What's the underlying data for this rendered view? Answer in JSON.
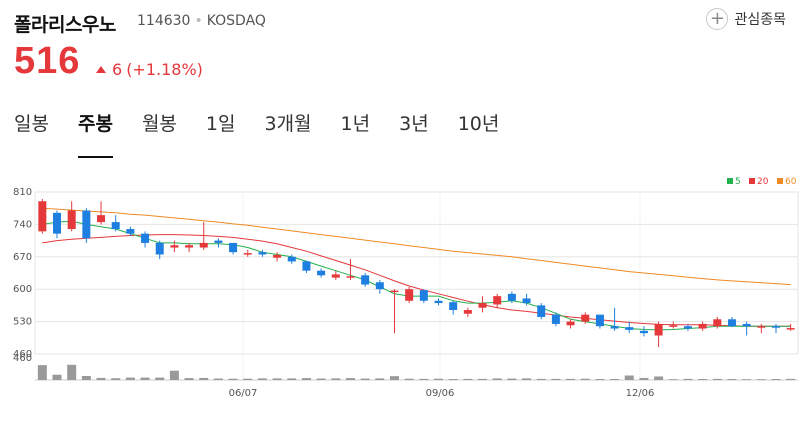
{
  "header": {
    "name": "폴라리스우노",
    "code": "114630",
    "market": "KOSDAQ",
    "favorite_label": "관심종목",
    "favorite_icon": "plus-icon"
  },
  "price": {
    "current": "516",
    "change": "6",
    "change_pct": "(+1.18%)",
    "direction_icon": "up-triangle-icon",
    "color": "#e5383b"
  },
  "tabs": [
    {
      "label": "일봉",
      "active": false
    },
    {
      "label": "주봉",
      "active": true
    },
    {
      "label": "월봉",
      "active": false
    },
    {
      "label": "1일",
      "active": false
    },
    {
      "label": "3개월",
      "active": false
    },
    {
      "label": "1년",
      "active": false
    },
    {
      "label": "3년",
      "active": false
    },
    {
      "label": "10년",
      "active": false
    }
  ],
  "chart_data": {
    "type": "candlestick",
    "y_ticks": [
      810,
      740,
      670,
      600,
      530,
      460
    ],
    "ylim": [
      460,
      810
    ],
    "volume_label": "460",
    "x_ticks": [
      "06/07",
      "09/06",
      "12/06"
    ],
    "legend": [
      {
        "name": "5",
        "color": "#22b14c"
      },
      {
        "name": "20",
        "color": "#e5383b"
      },
      {
        "name": "60",
        "color": "#f08a24"
      }
    ],
    "colors": {
      "up": "#e5383b",
      "down": "#1e7fe0",
      "volume": "#999999",
      "grid": "#e6e6e6"
    },
    "candles": [
      [
        725,
        790,
        795,
        720
      ],
      [
        765,
        720,
        770,
        710
      ],
      [
        730,
        770,
        790,
        725
      ],
      [
        770,
        710,
        775,
        700
      ],
      [
        745,
        760,
        790,
        740
      ],
      [
        745,
        730,
        760,
        725
      ],
      [
        730,
        720,
        735,
        715
      ],
      [
        720,
        700,
        725,
        690
      ],
      [
        700,
        675,
        705,
        665
      ],
      [
        690,
        695,
        705,
        680
      ],
      [
        690,
        695,
        700,
        680
      ],
      [
        690,
        700,
        745,
        685
      ],
      [
        705,
        700,
        710,
        690
      ],
      [
        700,
        680,
        700,
        675
      ],
      [
        675,
        678,
        685,
        670
      ],
      [
        680,
        675,
        685,
        670
      ],
      [
        668,
        674,
        680,
        660
      ],
      [
        670,
        660,
        675,
        655
      ],
      [
        660,
        640,
        662,
        635
      ],
      [
        640,
        630,
        645,
        625
      ],
      [
        625,
        632,
        640,
        620
      ],
      [
        628,
        628,
        665,
        620
      ],
      [
        630,
        610,
        635,
        605
      ],
      [
        615,
        600,
        620,
        590
      ],
      [
        597,
        597,
        600,
        505
      ],
      [
        575,
        600,
        605,
        570
      ],
      [
        598,
        575,
        600,
        570
      ],
      [
        575,
        570,
        580,
        565
      ],
      [
        572,
        555,
        575,
        545
      ],
      [
        547,
        555,
        560,
        540
      ],
      [
        560,
        570,
        585,
        550
      ],
      [
        567,
        585,
        590,
        560
      ],
      [
        590,
        575,
        595,
        570
      ],
      [
        580,
        570,
        590,
        565
      ],
      [
        565,
        540,
        570,
        535
      ],
      [
        545,
        525,
        550,
        520
      ],
      [
        522,
        530,
        535,
        515
      ],
      [
        530,
        545,
        550,
        525
      ],
      [
        545,
        520,
        545,
        515
      ],
      [
        520,
        515,
        560,
        510
      ],
      [
        518,
        512,
        530,
        505
      ],
      [
        510,
        505,
        520,
        498
      ],
      [
        500,
        525,
        530,
        475
      ],
      [
        520,
        522,
        530,
        515
      ],
      [
        520,
        515,
        525,
        510
      ],
      [
        515,
        525,
        530,
        510
      ],
      [
        520,
        535,
        540,
        515
      ],
      [
        535,
        520,
        540,
        518
      ],
      [
        525,
        520,
        530,
        500
      ],
      [
        520,
        520,
        525,
        505
      ],
      [
        520,
        518,
        525,
        505
      ],
      [
        515,
        516,
        525,
        510
      ]
    ],
    "ma5": [
      740,
      745,
      747,
      740,
      735,
      730,
      720,
      710,
      700,
      700,
      698,
      698,
      698,
      696,
      690,
      680,
      675,
      670,
      660,
      650,
      640,
      630,
      620,
      605,
      590,
      585,
      585,
      585,
      575,
      570,
      570,
      572,
      575,
      570,
      560,
      548,
      535,
      530,
      525,
      520,
      515,
      513,
      512,
      513,
      515,
      517,
      520,
      520,
      520,
      520,
      520,
      520
    ],
    "ma20": [
      700,
      705,
      708,
      710,
      712,
      714,
      716,
      717,
      718,
      718,
      717,
      716,
      714,
      712,
      708,
      704,
      698,
      690,
      682,
      672,
      662,
      652,
      642,
      630,
      618,
      607,
      598,
      590,
      582,
      574,
      567,
      560,
      555,
      552,
      548,
      544,
      540,
      537,
      534,
      531,
      528,
      526,
      524,
      523,
      523,
      523,
      522,
      521,
      520,
      520,
      520,
      520
    ],
    "ma60": [
      775,
      773,
      771,
      769,
      767,
      765,
      762,
      760,
      757,
      754,
      751,
      748,
      745,
      741,
      738,
      734,
      730,
      726,
      722,
      718,
      714,
      710,
      706,
      702,
      698,
      694,
      690,
      686,
      682,
      679,
      676,
      673,
      670,
      666,
      662,
      658,
      654,
      650,
      646,
      642,
      638,
      635,
      632,
      629,
      626,
      623,
      620,
      618,
      616,
      614,
      612,
      610
    ],
    "volume": [
      0.93,
      0.33,
      0.95,
      0.25,
      0.13,
      0.11,
      0.15,
      0.15,
      0.15,
      0.58,
      0.12,
      0.13,
      0.09,
      0.08,
      0.08,
      0.1,
      0.1,
      0.1,
      0.12,
      0.09,
      0.1,
      0.12,
      0.09,
      0.1,
      0.24,
      0.08,
      0.07,
      0.08,
      0.06,
      0.07,
      0.07,
      0.1,
      0.09,
      0.1,
      0.07,
      0.07,
      0.07,
      0.08,
      0.06,
      0.06,
      0.28,
      0.13,
      0.22,
      0.05,
      0.07,
      0.06,
      0.07,
      0.06,
      0.05,
      0.05,
      0.06,
      0.07
    ]
  }
}
